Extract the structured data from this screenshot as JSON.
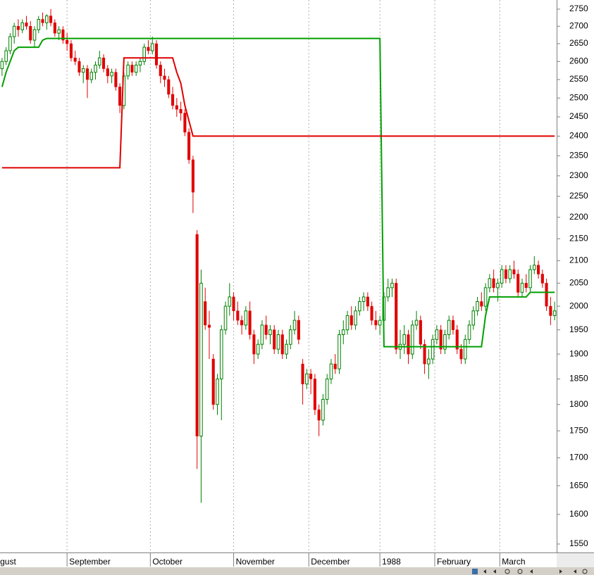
{
  "chart_data": {
    "type": "candlestick",
    "up_color": "#008000",
    "down_color": "#e00000",
    "log_scale": true,
    "grid": true,
    "xlim": [
      0,
      137
    ],
    "ylim": [
      1536,
      2777
    ],
    "yticks": [
      1550,
      1600,
      1650,
      1700,
      1750,
      1800,
      1850,
      1900,
      1950,
      2000,
      2050,
      2100,
      2150,
      2200,
      2250,
      2300,
      2350,
      2400,
      2450,
      2500,
      2550,
      2600,
      2650,
      2700,
      2750
    ],
    "xticks": [
      {
        "value": -0.5,
        "label": "gust"
      },
      {
        "value": 16.5,
        "label": "September"
      },
      {
        "value": 37,
        "label": "October"
      },
      {
        "value": 57.5,
        "label": "November"
      },
      {
        "value": 76,
        "label": "December"
      },
      {
        "value": 93.5,
        "label": "1988"
      },
      {
        "value": 107,
        "label": "February"
      },
      {
        "value": 123,
        "label": "March"
      }
    ],
    "candles": [
      [
        2580,
        2610,
        2560,
        2600
      ],
      [
        2600,
        2640,
        2590,
        2630
      ],
      [
        2630,
        2680,
        2620,
        2670
      ],
      [
        2670,
        2710,
        2650,
        2700
      ],
      [
        2700,
        2720,
        2670,
        2690
      ],
      [
        2690,
        2720,
        2680,
        2710
      ],
      [
        2710,
        2730,
        2690,
        2700
      ],
      [
        2700,
        2715,
        2650,
        2660
      ],
      [
        2660,
        2700,
        2640,
        2690
      ],
      [
        2690,
        2730,
        2680,
        2720
      ],
      [
        2720,
        2740,
        2700,
        2710
      ],
      [
        2710,
        2735,
        2690,
        2730
      ],
      [
        2730,
        2750,
        2700,
        2710
      ],
      [
        2710,
        2720,
        2670,
        2680
      ],
      [
        2680,
        2700,
        2660,
        2690
      ],
      [
        2690,
        2700,
        2650,
        2660
      ],
      [
        2660,
        2680,
        2630,
        2650
      ],
      [
        2650,
        2660,
        2600,
        2610
      ],
      [
        2610,
        2630,
        2590,
        2600
      ],
      [
        2600,
        2610,
        2560,
        2570
      ],
      [
        2570,
        2590,
        2540,
        2580
      ],
      [
        2580,
        2590,
        2500,
        2550
      ],
      [
        2550,
        2580,
        2540,
        2570
      ],
      [
        2570,
        2600,
        2550,
        2590
      ],
      [
        2590,
        2630,
        2580,
        2610
      ],
      [
        2610,
        2620,
        2570,
        2580
      ],
      [
        2580,
        2590,
        2540,
        2560
      ],
      [
        2560,
        2580,
        2540,
        2570
      ],
      [
        2570,
        2580,
        2520,
        2530
      ],
      [
        2530,
        2540,
        2460,
        2480
      ],
      [
        2480,
        2570,
        2470,
        2560
      ],
      [
        2560,
        2600,
        2550,
        2590
      ],
      [
        2590,
        2600,
        2560,
        2570
      ],
      [
        2570,
        2600,
        2560,
        2590
      ],
      [
        2590,
        2610,
        2570,
        2600
      ],
      [
        2600,
        2650,
        2590,
        2640
      ],
      [
        2640,
        2660,
        2620,
        2630
      ],
      [
        2630,
        2670,
        2620,
        2650
      ],
      [
        2650,
        2660,
        2580,
        2590
      ],
      [
        2590,
        2600,
        2540,
        2560
      ],
      [
        2560,
        2580,
        2530,
        2550
      ],
      [
        2550,
        2560,
        2500,
        2510
      ],
      [
        2510,
        2530,
        2470,
        2480
      ],
      [
        2480,
        2500,
        2450,
        2470
      ],
      [
        2470,
        2490,
        2440,
        2460
      ],
      [
        2460,
        2470,
        2400,
        2410
      ],
      [
        2410,
        2420,
        2330,
        2340
      ],
      [
        2340,
        2350,
        2210,
        2260
      ],
      [
        2160,
        2170,
        1680,
        1740
      ],
      [
        1740,
        2080,
        1620,
        2050
      ],
      [
        2010,
        2040,
        1950,
        1960
      ],
      [
        1960,
        1990,
        1890,
        1955
      ],
      [
        1890,
        1900,
        1790,
        1800
      ],
      [
        1800,
        1860,
        1780,
        1850
      ],
      [
        1850,
        1960,
        1770,
        1950
      ],
      [
        1950,
        2010,
        1940,
        2000
      ],
      [
        2000,
        2050,
        1980,
        2020
      ],
      [
        2020,
        2030,
        1970,
        1990
      ],
      [
        1990,
        2010,
        1960,
        1970
      ],
      [
        1970,
        1980,
        1940,
        1960
      ],
      [
        1960,
        2000,
        1950,
        1990
      ],
      [
        1990,
        2010,
        1930,
        1940
      ],
      [
        1940,
        1950,
        1880,
        1900
      ],
      [
        1900,
        1930,
        1890,
        1920
      ],
      [
        1920,
        1970,
        1910,
        1960
      ],
      [
        1960,
        1980,
        1930,
        1940
      ],
      [
        1940,
        1960,
        1920,
        1950
      ],
      [
        1950,
        1960,
        1900,
        1910
      ],
      [
        1910,
        1950,
        1900,
        1940
      ],
      [
        1940,
        1950,
        1890,
        1900
      ],
      [
        1900,
        1930,
        1890,
        1920
      ],
      [
        1920,
        1960,
        1910,
        1950
      ],
      [
        1950,
        1990,
        1940,
        1970
      ],
      [
        1970,
        1980,
        1920,
        1930
      ],
      [
        1880,
        1890,
        1800,
        1840
      ],
      [
        1840,
        1870,
        1830,
        1860
      ],
      [
        1860,
        1870,
        1820,
        1850
      ],
      [
        1850,
        1860,
        1780,
        1790
      ],
      [
        1790,
        1800,
        1740,
        1770
      ],
      [
        1770,
        1820,
        1760,
        1810
      ],
      [
        1810,
        1860,
        1800,
        1850
      ],
      [
        1850,
        1890,
        1840,
        1880
      ],
      [
        1880,
        1900,
        1860,
        1870
      ],
      [
        1870,
        1950,
        1860,
        1940
      ],
      [
        1940,
        1970,
        1920,
        1950
      ],
      [
        1950,
        1990,
        1940,
        1980
      ],
      [
        1980,
        2000,
        1950,
        1960
      ],
      [
        1960,
        2000,
        1950,
        1990
      ],
      [
        1990,
        2020,
        1980,
        2010
      ],
      [
        2010,
        2030,
        1990,
        2020
      ],
      [
        2020,
        2030,
        1990,
        2000
      ],
      [
        2000,
        2010,
        1960,
        1970
      ],
      [
        1970,
        1990,
        1950,
        1960
      ],
      [
        1960,
        1980,
        1940,
        1970
      ],
      [
        1970,
        2030,
        1960,
        2020
      ],
      [
        2020,
        2060,
        2010,
        2040
      ],
      [
        2040,
        2060,
        2020,
        2050
      ],
      [
        2050,
        2060,
        1900,
        1910
      ],
      [
        1910,
        1950,
        1890,
        1920
      ],
      [
        1920,
        1960,
        1900,
        1940
      ],
      [
        1940,
        1950,
        1880,
        1900
      ],
      [
        1900,
        1970,
        1890,
        1960
      ],
      [
        1960,
        1990,
        1950,
        1970
      ],
      [
        1970,
        1980,
        1910,
        1920
      ],
      [
        1920,
        1930,
        1860,
        1880
      ],
      [
        1880,
        1910,
        1850,
        1890
      ],
      [
        1890,
        1940,
        1880,
        1930
      ],
      [
        1930,
        1960,
        1920,
        1950
      ],
      [
        1950,
        1960,
        1900,
        1910
      ],
      [
        1910,
        1950,
        1900,
        1940
      ],
      [
        1940,
        1980,
        1930,
        1970
      ],
      [
        1970,
        1980,
        1940,
        1950
      ],
      [
        1950,
        1960,
        1900,
        1910
      ],
      [
        1910,
        1920,
        1880,
        1890
      ],
      [
        1890,
        1940,
        1880,
        1930
      ],
      [
        1930,
        1970,
        1920,
        1960
      ],
      [
        1960,
        2000,
        1950,
        1990
      ],
      [
        1990,
        2020,
        1980,
        2010
      ],
      [
        2010,
        2030,
        1990,
        2000
      ],
      [
        2000,
        2050,
        1990,
        2040
      ],
      [
        2040,
        2070,
        2030,
        2060
      ],
      [
        2060,
        2080,
        2030,
        2040
      ],
      [
        2040,
        2060,
        2010,
        2050
      ],
      [
        2050,
        2090,
        2040,
        2080
      ],
      [
        2080,
        2090,
        2050,
        2060
      ],
      [
        2060,
        2090,
        2050,
        2080
      ],
      [
        2080,
        2100,
        2060,
        2070
      ],
      [
        2070,
        2080,
        2020,
        2030
      ],
      [
        2030,
        2060,
        2020,
        2050
      ],
      [
        2050,
        2070,
        2030,
        2040
      ],
      [
        2040,
        2090,
        2030,
        2080
      ],
      [
        2080,
        2110,
        2070,
        2090
      ],
      [
        2090,
        2100,
        2060,
        2070
      ],
      [
        2070,
        2080,
        2040,
        2050
      ],
      [
        2050,
        2060,
        1990,
        2000
      ],
      [
        2000,
        2020,
        1960,
        1980
      ],
      [
        1980,
        2010,
        1970,
        1990
      ]
    ],
    "series": [
      {
        "color": "#00a000",
        "values": [
          2530,
          2570,
          2600,
          2630,
          2640,
          2640,
          2640,
          2640,
          2640,
          2640,
          2660,
          2665,
          2665,
          2665,
          2665,
          2665,
          2665,
          2665,
          2665,
          2665,
          2665,
          2665,
          2665,
          2665,
          2665,
          2665,
          2665,
          2665,
          2665,
          2665,
          2665,
          2665,
          2665,
          2665,
          2665,
          2665,
          2665,
          2665,
          2665,
          2665,
          2665,
          2665,
          2665,
          2665,
          2665,
          2665,
          2665,
          2665,
          2665,
          2665,
          2665,
          2665,
          2665,
          2665,
          2665,
          2665,
          2665,
          2665,
          2665,
          2665,
          2665,
          2665,
          2665,
          2665,
          2665,
          2665,
          2665,
          2665,
          2665,
          2665,
          2665,
          2665,
          2665,
          2665,
          2665,
          2665,
          2665,
          2665,
          2665,
          2665,
          2665,
          2665,
          2665,
          2665,
          2665,
          2665,
          2665,
          2665,
          2665,
          2665,
          2665,
          2665,
          2665,
          2665,
          1915,
          1915,
          1915,
          1915,
          1915,
          1915,
          1915,
          1915,
          1915,
          1915,
          1915,
          1915,
          1915,
          1915,
          1915,
          1915,
          1915,
          1915,
          1915,
          1915,
          1915,
          1915,
          1915,
          1915,
          1915,
          1980,
          2020,
          2020,
          2020,
          2020,
          2020,
          2020,
          2020,
          2020,
          2020,
          2020,
          2030,
          2030,
          2030,
          2030,
          2030,
          2030,
          2030
        ]
      },
      {
        "color": "#e00000",
        "values": [
          2320,
          2320,
          2320,
          2320,
          2320,
          2320,
          2320,
          2320,
          2320,
          2320,
          2320,
          2320,
          2320,
          2320,
          2320,
          2320,
          2320,
          2320,
          2320,
          2320,
          2320,
          2320,
          2320,
          2320,
          2320,
          2320,
          2320,
          2320,
          2320,
          2320,
          2610,
          2610,
          2610,
          2610,
          2610,
          2610,
          2610,
          2610,
          2610,
          2610,
          2610,
          2610,
          2610,
          2570,
          2540,
          2480,
          2440,
          2400,
          2400,
          2400,
          2400,
          2400,
          2400,
          2400,
          2400,
          2400,
          2400,
          2400,
          2400,
          2400,
          2400,
          2400,
          2400,
          2400,
          2400,
          2400,
          2400,
          2400,
          2400,
          2400,
          2400,
          2400,
          2400,
          2400,
          2400,
          2400,
          2400,
          2400,
          2400,
          2400,
          2400,
          2400,
          2400,
          2400,
          2400,
          2400,
          2400,
          2400,
          2400,
          2400,
          2400,
          2400,
          2400,
          2400,
          2400,
          2400,
          2400,
          2400,
          2400,
          2400,
          2400,
          2400,
          2400,
          2400,
          2400,
          2400,
          2400,
          2400,
          2400,
          2400,
          2400,
          2400,
          2400,
          2400,
          2400,
          2400,
          2400,
          2400,
          2400,
          2400,
          2400,
          2400,
          2400,
          2400,
          2400,
          2400,
          2400,
          2400,
          2400,
          2400,
          2400,
          2400,
          2400,
          2400,
          2400,
          2400,
          2400
        ]
      }
    ]
  }
}
